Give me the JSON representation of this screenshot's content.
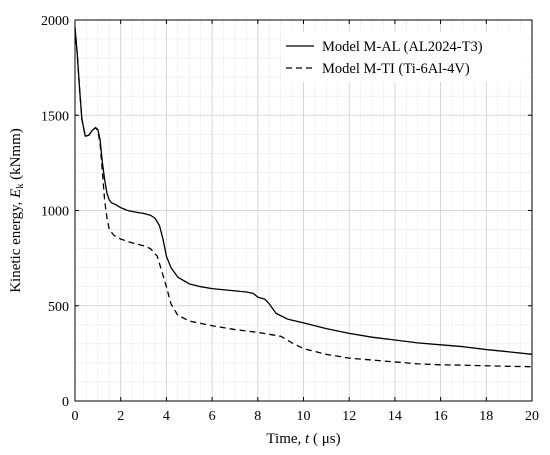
{
  "chart_data": {
    "type": "line",
    "xlabel": {
      "prefix": "Time, ",
      "var": "t",
      "suffix": " ( μs)"
    },
    "ylabel": {
      "prefix": "Kinetic energy, ",
      "var": "E",
      "sub": "k",
      "suffix": " (kNmm)"
    },
    "xlim": [
      0,
      20
    ],
    "ylim": [
      0,
      2000
    ],
    "xticks": [
      0,
      2,
      4,
      6,
      8,
      10,
      12,
      14,
      16,
      18,
      20
    ],
    "yticks": [
      0,
      500,
      1000,
      1500,
      2000
    ],
    "grid": true,
    "minor_grid": true,
    "legend_position": "top-right",
    "series": [
      {
        "name": "Model M-AL (AL2024-T3)",
        "color": "#000000",
        "style": "solid",
        "x": [
          0,
          0.1,
          0.2,
          0.3,
          0.45,
          0.6,
          0.75,
          0.9,
          1.0,
          1.1,
          1.2,
          1.3,
          1.4,
          1.5,
          1.6,
          1.8,
          2.0,
          2.3,
          2.7,
          3.0,
          3.3,
          3.5,
          3.7,
          3.85,
          4.0,
          4.2,
          4.5,
          5.0,
          5.5,
          6.0,
          7.0,
          7.5,
          7.8,
          8.0,
          8.3,
          8.5,
          8.8,
          9.3,
          10.0,
          11.0,
          12.0,
          13.0,
          14.0,
          15.0,
          16.0,
          17.0,
          18.0,
          19.0,
          20.0
        ],
        "y": [
          1960,
          1820,
          1640,
          1480,
          1390,
          1395,
          1420,
          1435,
          1425,
          1370,
          1250,
          1160,
          1090,
          1055,
          1040,
          1030,
          1015,
          1000,
          990,
          985,
          975,
          960,
          920,
          850,
          760,
          700,
          650,
          615,
          600,
          590,
          578,
          572,
          565,
          545,
          535,
          510,
          460,
          430,
          410,
          380,
          355,
          335,
          320,
          305,
          295,
          285,
          270,
          258,
          245
        ]
      },
      {
        "name": "Model M-TI (Ti-6Al-4V)",
        "color": "#000000",
        "style": "dashed",
        "x": [
          0,
          0.1,
          0.2,
          0.3,
          0.45,
          0.6,
          0.75,
          0.9,
          1.0,
          1.1,
          1.2,
          1.3,
          1.4,
          1.5,
          1.7,
          2.0,
          2.5,
          3.0,
          3.3,
          3.6,
          3.8,
          4.0,
          4.2,
          4.5,
          5.0,
          6.0,
          7.0,
          8.0,
          9.0,
          9.5,
          10.0,
          11.0,
          12.0,
          13.0,
          14.0,
          15.0,
          16.0,
          17.0,
          18.0,
          19.0,
          20.0
        ],
        "y": [
          1960,
          1820,
          1640,
          1480,
          1390,
          1395,
          1420,
          1435,
          1420,
          1350,
          1200,
          1050,
          960,
          900,
          870,
          850,
          830,
          815,
          800,
          760,
          680,
          600,
          510,
          450,
          420,
          395,
          375,
          360,
          340,
          305,
          275,
          245,
          225,
          215,
          205,
          195,
          190,
          188,
          185,
          182,
          180
        ]
      }
    ]
  }
}
